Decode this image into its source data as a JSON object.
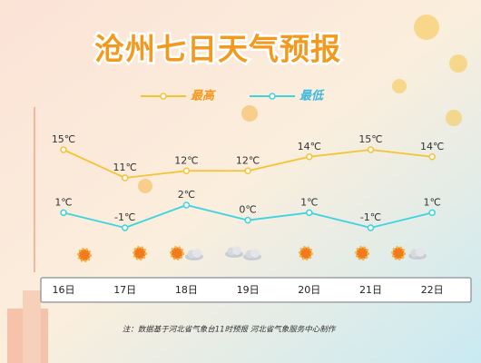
{
  "chart_data": {
    "type": "line",
    "title": "沧州七日天气预报",
    "categories": [
      "16日",
      "17日",
      "18日",
      "19日",
      "20日",
      "21日",
      "22日"
    ],
    "series": [
      {
        "name": "最高",
        "color": "#f5c332",
        "values": [
          15,
          11,
          12,
          12,
          14,
          15,
          14
        ],
        "value_labels": [
          "15℃",
          "11℃",
          "12℃",
          "12℃",
          "14℃",
          "15℃",
          "14℃"
        ]
      },
      {
        "name": "最低",
        "color": "#3fd3e0",
        "values": [
          1,
          -1,
          2,
          0,
          1,
          -1,
          1
        ],
        "value_labels": [
          "1℃",
          "-1℃",
          "2℃",
          "0℃",
          "1℃",
          "-1℃",
          "1℃"
        ]
      }
    ],
    "note": "注：数据基于河北省气象台11时预报 河北省气象服务中心制作"
  }
}
